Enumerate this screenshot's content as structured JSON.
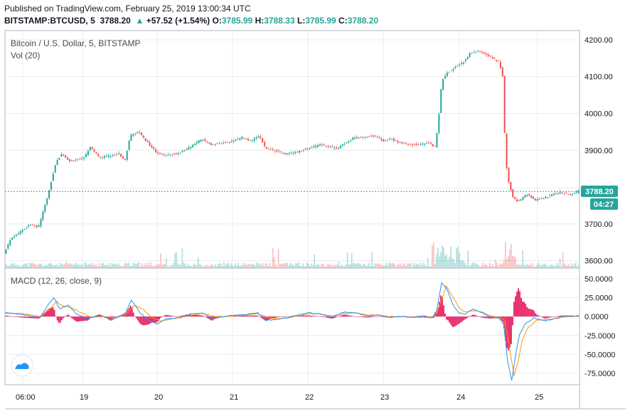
{
  "header": {
    "published": "Published on TradingView.com, February 25, 2019 13:00:34 UTC",
    "symbol": "BITSTAMP:BTCUSD, 5",
    "last": "3788.20",
    "change": "+57.52 (+1.54%)",
    "o_key": "O:",
    "o_val": "3785.99",
    "h_key": "H:",
    "h_val": "3788.33",
    "l_key": "L:",
    "l_val": "3785.99",
    "c_key": "C:",
    "c_val": "3788.20"
  },
  "colors": {
    "up": "#26a69a",
    "down": "#ef5350",
    "macd_line": "#2196f3",
    "signal_line": "#ff9800",
    "histogram": "#e91e63",
    "grid": "#e8ecf0"
  },
  "chart_data": [
    {
      "type": "candlestick",
      "title": "Bitcoin / U.S. Dollar, 5, BITSTAMP",
      "volume_label": "Vol (20)",
      "ylim": [
        3580,
        4225
      ],
      "y_ticks": [
        "4200.00",
        "4100.00",
        "4000.00",
        "3900.00",
        "3700.00",
        "3600.00"
      ],
      "y_tick_values": [
        4200,
        4100,
        4000,
        3900,
        3700,
        3600
      ],
      "x_ticks": [
        "06:00",
        "19",
        "20",
        "21",
        "22",
        "23",
        "24",
        "25"
      ],
      "last_price_label": "3788.20",
      "last_price_value": 3788.2,
      "countdown_label": "04:27",
      "series": [
        {
          "name": "BTCUSD",
          "path": [
            [
              0,
              3620
            ],
            [
              0.012,
              3660
            ],
            [
              0.03,
              3680
            ],
            [
              0.045,
              3700
            ],
            [
              0.06,
              3690
            ],
            [
              0.075,
              3770
            ],
            [
              0.09,
              3865
            ],
            [
              0.1,
              3890
            ],
            [
              0.115,
              3870
            ],
            [
              0.14,
              3880
            ],
            [
              0.15,
              3910
            ],
            [
              0.165,
              3880
            ],
            [
              0.185,
              3885
            ],
            [
              0.2,
              3890
            ],
            [
              0.21,
              3870
            ],
            [
              0.22,
              3940
            ],
            [
              0.235,
              3950
            ],
            [
              0.25,
              3920
            ],
            [
              0.265,
              3895
            ],
            [
              0.28,
              3885
            ],
            [
              0.3,
              3890
            ],
            [
              0.32,
              3905
            ],
            [
              0.345,
              3930
            ],
            [
              0.36,
              3915
            ],
            [
              0.38,
              3920
            ],
            [
              0.4,
              3925
            ],
            [
              0.415,
              3935
            ],
            [
              0.43,
              3925
            ],
            [
              0.445,
              3940
            ],
            [
              0.455,
              3905
            ],
            [
              0.47,
              3900
            ],
            [
              0.49,
              3890
            ],
            [
              0.51,
              3895
            ],
            [
              0.53,
              3905
            ],
            [
              0.55,
              3915
            ],
            [
              0.565,
              3910
            ],
            [
              0.58,
              3905
            ],
            [
              0.595,
              3920
            ],
            [
              0.61,
              3935
            ],
            [
              0.625,
              3935
            ],
            [
              0.645,
              3940
            ],
            [
              0.66,
              3925
            ],
            [
              0.675,
              3930
            ],
            [
              0.69,
              3920
            ],
            [
              0.705,
              3915
            ],
            [
              0.72,
              3915
            ],
            [
              0.74,
              3920
            ],
            [
              0.75,
              3910
            ],
            [
              0.755,
              3960
            ],
            [
              0.762,
              4090
            ],
            [
              0.772,
              4110
            ],
            [
              0.785,
              4125
            ],
            [
              0.8,
              4140
            ],
            [
              0.812,
              4165
            ],
            [
              0.825,
              4170
            ],
            [
              0.838,
              4160
            ],
            [
              0.85,
              4150
            ],
            [
              0.862,
              4140
            ],
            [
              0.868,
              4100
            ],
            [
              0.872,
              3920
            ],
            [
              0.876,
              3830
            ],
            [
              0.885,
              3775
            ],
            [
              0.895,
              3760
            ],
            [
              0.91,
              3780
            ],
            [
              0.925,
              3765
            ],
            [
              0.94,
              3770
            ],
            [
              0.955,
              3780
            ],
            [
              0.97,
              3785
            ],
            [
              0.985,
              3780
            ],
            [
              1,
              3788
            ]
          ]
        }
      ]
    },
    {
      "type": "macd",
      "title": "MACD (12, 26, close, 9)",
      "ylim": [
        -90,
        64
      ],
      "y_ticks": [
        "50.0000",
        "25.0000",
        "0.0000",
        "-25.0000",
        "-50.0000",
        "-75.0000"
      ],
      "y_tick_values": [
        50,
        25,
        0,
        -25,
        -50,
        -75
      ],
      "series": [
        {
          "name": "MACD",
          "path": [
            [
              0,
              5
            ],
            [
              0.03,
              3
            ],
            [
              0.06,
              -2
            ],
            [
              0.075,
              15
            ],
            [
              0.085,
              25
            ],
            [
              0.095,
              10
            ],
            [
              0.11,
              15
            ],
            [
              0.125,
              3
            ],
            [
              0.145,
              -3
            ],
            [
              0.165,
              2
            ],
            [
              0.185,
              -5
            ],
            [
              0.21,
              5
            ],
            [
              0.22,
              22
            ],
            [
              0.235,
              5
            ],
            [
              0.25,
              -5
            ],
            [
              0.265,
              -10
            ],
            [
              0.28,
              -3
            ],
            [
              0.3,
              -2
            ],
            [
              0.32,
              3
            ],
            [
              0.345,
              5
            ],
            [
              0.36,
              -3
            ],
            [
              0.38,
              0
            ],
            [
              0.4,
              2
            ],
            [
              0.42,
              3
            ],
            [
              0.44,
              5
            ],
            [
              0.455,
              -5
            ],
            [
              0.47,
              -4
            ],
            [
              0.49,
              -2
            ],
            [
              0.51,
              2
            ],
            [
              0.53,
              5
            ],
            [
              0.55,
              3
            ],
            [
              0.57,
              -1
            ],
            [
              0.59,
              6
            ],
            [
              0.61,
              5
            ],
            [
              0.63,
              1
            ],
            [
              0.65,
              2
            ],
            [
              0.67,
              -1
            ],
            [
              0.69,
              0
            ],
            [
              0.71,
              -1
            ],
            [
              0.73,
              0
            ],
            [
              0.745,
              -2
            ],
            [
              0.752,
              10
            ],
            [
              0.76,
              45
            ],
            [
              0.77,
              35
            ],
            [
              0.78,
              15
            ],
            [
              0.79,
              5
            ],
            [
              0.8,
              3
            ],
            [
              0.815,
              10
            ],
            [
              0.83,
              5
            ],
            [
              0.845,
              -1
            ],
            [
              0.86,
              -2
            ],
            [
              0.868,
              -10
            ],
            [
              0.875,
              -60
            ],
            [
              0.882,
              -84
            ],
            [
              0.888,
              -55
            ],
            [
              0.895,
              -25
            ],
            [
              0.905,
              -10
            ],
            [
              0.92,
              -2
            ],
            [
              0.94,
              -6
            ],
            [
              0.955,
              -3
            ],
            [
              0.97,
              0
            ],
            [
              0.985,
              1
            ],
            [
              1,
              1
            ]
          ]
        },
        {
          "name": "Signal",
          "path": [
            [
              0,
              4
            ],
            [
              0.03,
              4
            ],
            [
              0.06,
              0
            ],
            [
              0.075,
              8
            ],
            [
              0.09,
              20
            ],
            [
              0.1,
              14
            ],
            [
              0.115,
              12
            ],
            [
              0.13,
              6
            ],
            [
              0.15,
              -1
            ],
            [
              0.17,
              0
            ],
            [
              0.19,
              -2
            ],
            [
              0.21,
              2
            ],
            [
              0.225,
              15
            ],
            [
              0.24,
              10
            ],
            [
              0.255,
              -1
            ],
            [
              0.27,
              -6
            ],
            [
              0.285,
              -4
            ],
            [
              0.3,
              -2
            ],
            [
              0.32,
              1
            ],
            [
              0.345,
              4
            ],
            [
              0.365,
              0
            ],
            [
              0.38,
              0
            ],
            [
              0.4,
              1
            ],
            [
              0.42,
              2
            ],
            [
              0.44,
              4
            ],
            [
              0.46,
              -2
            ],
            [
              0.475,
              -3
            ],
            [
              0.49,
              -2
            ],
            [
              0.51,
              1
            ],
            [
              0.53,
              4
            ],
            [
              0.55,
              3
            ],
            [
              0.57,
              1
            ],
            [
              0.59,
              4
            ],
            [
              0.61,
              5
            ],
            [
              0.63,
              2
            ],
            [
              0.65,
              2
            ],
            [
              0.67,
              0
            ],
            [
              0.69,
              0
            ],
            [
              0.71,
              -1
            ],
            [
              0.73,
              -1
            ],
            [
              0.748,
              -1
            ],
            [
              0.758,
              18
            ],
            [
              0.768,
              40
            ],
            [
              0.778,
              28
            ],
            [
              0.79,
              12
            ],
            [
              0.8,
              6
            ],
            [
              0.815,
              8
            ],
            [
              0.83,
              6
            ],
            [
              0.845,
              1
            ],
            [
              0.86,
              -1
            ],
            [
              0.87,
              -5
            ],
            [
              0.878,
              -40
            ],
            [
              0.886,
              -78
            ],
            [
              0.893,
              -60
            ],
            [
              0.9,
              -32
            ],
            [
              0.91,
              -15
            ],
            [
              0.925,
              -5
            ],
            [
              0.94,
              -4
            ],
            [
              0.955,
              -3
            ],
            [
              0.97,
              -1
            ],
            [
              0.985,
              0
            ],
            [
              1,
              1
            ]
          ]
        }
      ]
    }
  ]
}
